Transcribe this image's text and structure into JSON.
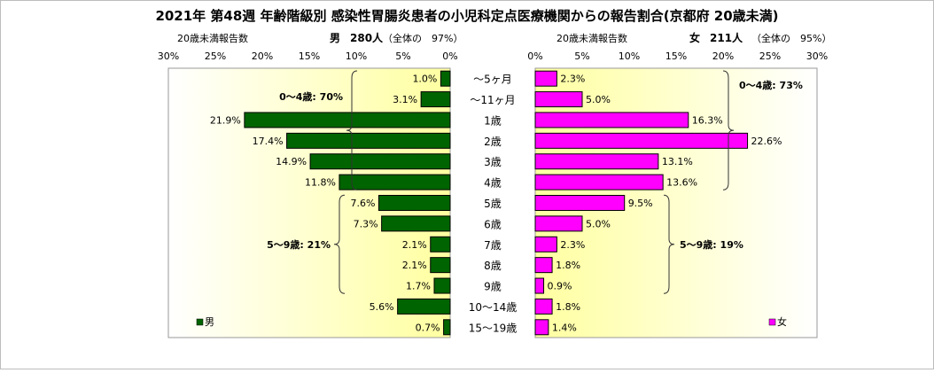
{
  "chart_data": {
    "type": "bar",
    "title": "2021年 第48週 年齢階級別 感染性胃腸炎患者の小児科定点医療機関からの報告割合(京都府 20歳未満)",
    "categories": [
      "～5ヶ月",
      "～11ヶ月",
      "1歳",
      "2歳",
      "3歳",
      "4歳",
      "5歳",
      "6歳",
      "7歳",
      "8歳",
      "9歳",
      "10～14歳",
      "15～19歳"
    ],
    "series": [
      {
        "name": "男",
        "color": "#006400",
        "header": {
          "count_label": "20歳未満報告数",
          "sex": "男",
          "count": "280人",
          "share": "（全体の　97%）"
        },
        "values": [
          1.0,
          3.1,
          21.9,
          17.4,
          14.9,
          11.8,
          7.6,
          7.3,
          2.1,
          2.1,
          1.7,
          5.6,
          0.7
        ],
        "value_labels": [
          "1.0%",
          "3.1%",
          "21.9%",
          "17.4%",
          "14.9%",
          "11.8%",
          "7.6%",
          "7.3%",
          "2.1%",
          "2.1%",
          "1.7%",
          "5.6%",
          "0.7%"
        ],
        "group_notes": [
          {
            "text": "0～4歳: 70%",
            "from_index": 0,
            "to_index": 5
          },
          {
            "text": "5～9歳: 21%",
            "from_index": 6,
            "to_index": 10
          }
        ]
      },
      {
        "name": "女",
        "color": "#ff00ff",
        "header": {
          "count_label": "20歳未満報告数",
          "sex": "女",
          "count": "211人",
          "share": "（全体の　95%）"
        },
        "values": [
          2.3,
          5.0,
          16.3,
          22.6,
          13.1,
          13.6,
          9.5,
          5.0,
          2.3,
          1.8,
          0.9,
          1.8,
          1.4
        ],
        "value_labels": [
          "2.3%",
          "5.0%",
          "16.3%",
          "22.6%",
          "13.1%",
          "13.6%",
          "9.5%",
          "5.0%",
          "2.3%",
          "1.8%",
          "0.9%",
          "1.8%",
          "1.4%"
        ],
        "group_notes": [
          {
            "text": "0～4歳: 73%",
            "from_index": 0,
            "to_index": 5
          },
          {
            "text": "5～9歳: 19%",
            "from_index": 6,
            "to_index": 10
          }
        ]
      }
    ],
    "xlim": [
      0,
      30
    ],
    "ticks": [
      30,
      25,
      20,
      15,
      10,
      5,
      0
    ],
    "tick_labels_left": [
      "30%",
      "25%",
      "20%",
      "15%",
      "10%",
      "5%",
      "0%"
    ],
    "tick_labels_right": [
      "0%",
      "5%",
      "10%",
      "15%",
      "20%",
      "25%",
      "30%"
    ],
    "legend": {
      "placement": "bottom-left / bottom-right",
      "items": [
        "男",
        "女"
      ]
    },
    "plot_background": "#ffffa0"
  }
}
